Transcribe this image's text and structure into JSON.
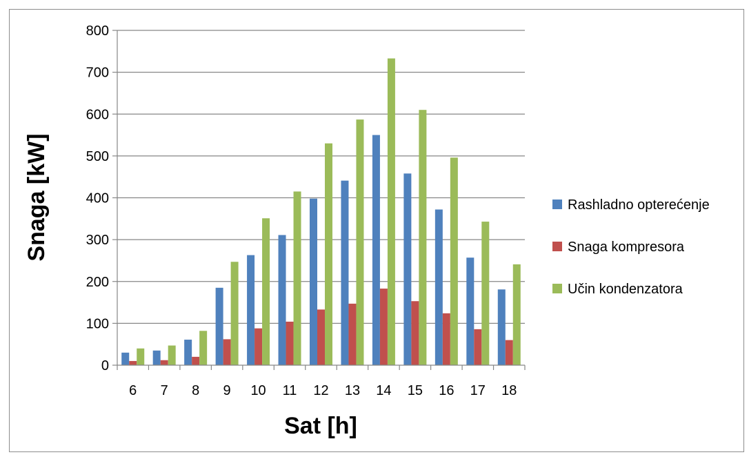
{
  "chart_data": {
    "type": "bar",
    "categories": [
      "6",
      "7",
      "8",
      "9",
      "10",
      "11",
      "12",
      "13",
      "14",
      "15",
      "16",
      "17",
      "18"
    ],
    "series": [
      {
        "name": "Rashladno opterećenje",
        "color": "#4f81bd",
        "values": [
          30,
          35,
          61,
          185,
          263,
          311,
          398,
          441,
          550,
          458,
          372,
          257,
          181
        ]
      },
      {
        "name": "Snaga kompresora",
        "color": "#c0504d",
        "values": [
          10,
          12,
          20,
          62,
          88,
          104,
          133,
          147,
          183,
          153,
          124,
          86,
          60
        ]
      },
      {
        "name": "Učin kondenzatora",
        "color": "#9bbb59",
        "values": [
          40,
          47,
          82,
          247,
          351,
          415,
          530,
          587,
          733,
          610,
          496,
          343,
          241
        ]
      }
    ],
    "yticks": [
      "0",
      "100",
      "200",
      "300",
      "400",
      "500",
      "600",
      "700",
      "800"
    ],
    "ylim": [
      0,
      800
    ],
    "xlabel": "Sat [h]",
    "ylabel": "Snaga [kW]",
    "grid": true,
    "legend_position": "right"
  }
}
